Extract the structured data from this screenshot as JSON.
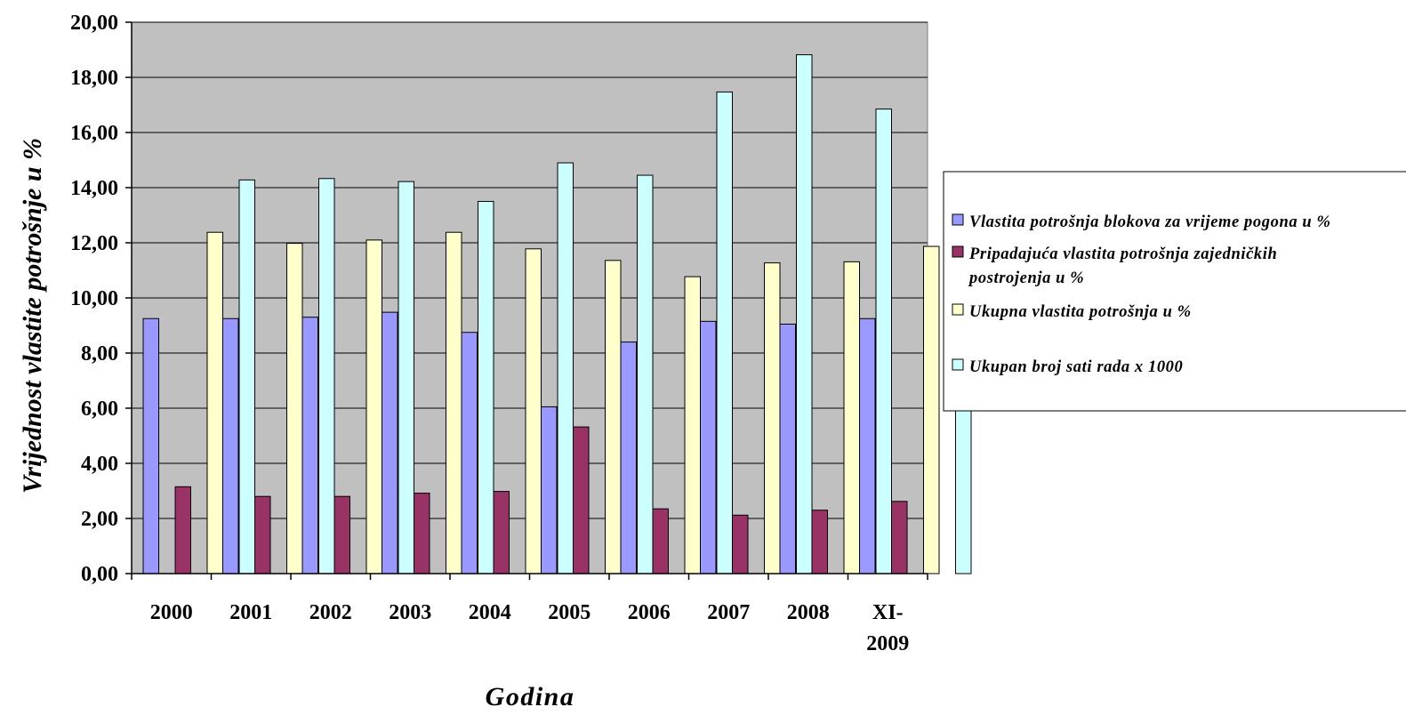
{
  "chart_data": {
    "type": "bar",
    "title": "",
    "xlabel": "Godina",
    "ylabel": "Vrijednost vlastite potrošnje u %",
    "ylim": [
      0,
      20
    ],
    "yticks": [
      "0,00",
      "2,00",
      "4,00",
      "6,00",
      "8,00",
      "10,00",
      "12,00",
      "14,00",
      "16,00",
      "18,00",
      "20,00"
    ],
    "grid": true,
    "legend_position": "right",
    "categories": [
      [
        "2000"
      ],
      [
        "2001"
      ],
      [
        "2002"
      ],
      [
        "2003"
      ],
      [
        "2004"
      ],
      [
        "2005"
      ],
      [
        "2006"
      ],
      [
        "2007"
      ],
      [
        "2008"
      ],
      [
        "XI-",
        "2009"
      ]
    ],
    "series": [
      {
        "name": "Vlastita potrošnja blokova za vrijeme pogona u %",
        "legend_lines": [
          "Vlastita potrošnja blokova za vrijeme pogona u %"
        ],
        "color": "#9999ff",
        "values": [
          9.25,
          9.25,
          9.3,
          9.48,
          8.75,
          6.05,
          8.4,
          9.15,
          9.05,
          9.25
        ]
      },
      {
        "name": "Pripadajuća vlastita potrošnja zajedničkih postrojenja u %",
        "legend_lines": [
          "Pripadajuća vlastita potrošnja zajedničkih",
          "postrojenja u %"
        ],
        "color": "#993366",
        "values": [
          3.15,
          2.8,
          2.8,
          2.92,
          2.98,
          5.32,
          2.35,
          2.12,
          2.3,
          2.62
        ]
      },
      {
        "name": "Ukupna vlastita potrošnja u %",
        "legend_lines": [
          "Ukupna vlastita potrošnja u %"
        ],
        "color": "#ffffcc",
        "values": [
          12.38,
          11.98,
          12.1,
          12.38,
          11.78,
          11.36,
          10.77,
          11.27,
          11.31,
          11.87
        ]
      },
      {
        "name": "Ukupan broj sati rada x 1000",
        "legend_lines": [
          "Ukupan broj sati rada x 1000"
        ],
        "color": "#ccffff",
        "values": [
          14.28,
          14.33,
          14.22,
          13.5,
          14.9,
          14.45,
          17.47,
          18.82,
          16.85,
          13.5
        ]
      }
    ],
    "colors": {
      "plot_background": "#c0c0c0",
      "gridline": "#000000",
      "bar_outline": "#000000"
    }
  }
}
